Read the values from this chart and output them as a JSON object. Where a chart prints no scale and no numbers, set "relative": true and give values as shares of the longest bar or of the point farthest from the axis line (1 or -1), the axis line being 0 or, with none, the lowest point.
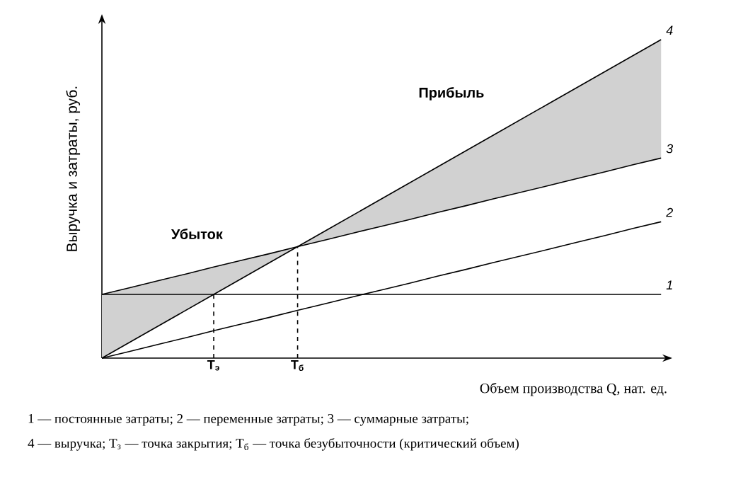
{
  "chart_data": {
    "type": "line",
    "relative": true,
    "xlabel": "Объем производства Q, нат. ед.",
    "ylabel": "Выручка и затраты, руб.",
    "categories": [
      null,
      null,
      null,
      null,
      "T$_{э}$",
      null,
      null,
      "T$_{б}$",
      null,
      null,
      null,
      null,
      null,
      null,
      null,
      null,
      null,
      null,
      null,
      null,
      null
    ],
    "series": [
      {
        "name": "1",
        "color": "#000000",
        "values": [
          0.2,
          0.2,
          0.2,
          0.2,
          0.2,
          0.2,
          0.2,
          0.2,
          0.2,
          0.2,
          0.2,
          0.2,
          0.2,
          0.2,
          0.2,
          0.2,
          0.2,
          0.2,
          0.2,
          0.2,
          0.2
        ]
      },
      {
        "name": "2",
        "color": "#000000",
        "values": [
          0,
          0.021,
          0.043,
          0.064,
          0.086,
          0.107,
          0.128,
          0.15,
          0.171,
          0.193,
          0.214,
          0.235,
          0.257,
          0.278,
          0.3,
          0.321,
          0.342,
          0.364,
          0.385,
          0.407,
          0.428
        ]
      },
      {
        "name": "3",
        "color": "#000000",
        "values": [
          0.2,
          0.221,
          0.243,
          0.264,
          0.286,
          0.307,
          0.328,
          0.35,
          0.371,
          0.393,
          0.414,
          0.435,
          0.457,
          0.478,
          0.5,
          0.521,
          0.542,
          0.564,
          0.585,
          0.607,
          0.628
        ]
      },
      {
        "name": "4",
        "color": "#000000",
        "values": [
          0,
          0.05,
          0.1,
          0.15,
          0.2,
          0.25,
          0.3,
          0.35,
          0.4,
          0.45,
          0.5,
          0.55,
          0.6,
          0.65,
          0.7,
          0.75,
          0.8,
          0.85,
          0.9,
          0.95,
          1
        ],
        "lower": [
          0,
          0.05,
          0.1,
          0.15,
          0.2,
          0.25,
          0.3,
          0.35,
          0.371,
          0.393,
          0.414,
          0.435,
          0.457,
          0.478,
          0.5,
          0.521,
          0.542,
          0.564,
          0.585,
          0.607,
          0.628
        ],
        "upper": [
          0.2,
          0.221,
          0.243,
          0.264,
          0.286,
          0.307,
          0.328,
          0.35,
          0.4,
          0.45,
          0.5,
          0.55,
          0.6,
          0.65,
          0.7,
          0.75,
          0.8,
          0.85,
          0.9,
          0.95,
          1
        ]
      }
    ],
    "ref_lines": [
      {
        "axis": "x",
        "value": "T$_{э}$",
        "line_style": "dashed"
      },
      {
        "axis": "x",
        "value": "T$_{б}$",
        "line_style": "dashed"
      }
    ],
    "annotations": [
      "Убыток",
      "Прибыль",
      "1 — постоянные затраты; 2 — переменные затраты; 3 — суммарные затраты;",
      "4 — выручка; T$_{з}$ — точка закрытия; T$_{б}$ — точка безубыточности (критический объем)"
    ],
    "marker": "none",
    "line_style": "solid"
  }
}
